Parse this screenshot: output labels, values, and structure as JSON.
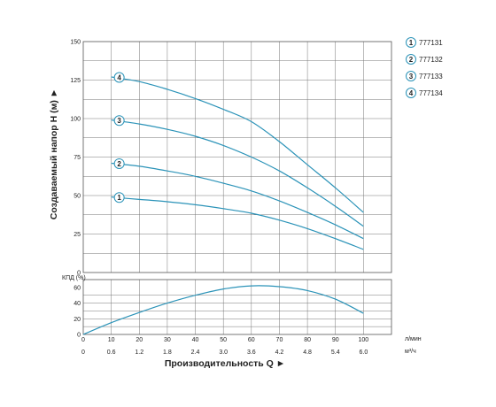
{
  "colors": {
    "curve": "#2b93b8",
    "grid": "#777777",
    "frame": "#555555"
  },
  "labels": {
    "ylabel": "Создаваемый напор Н (м) ►",
    "xlabel": "Производительность Q ►",
    "kpd_label": "КПД (%)",
    "unit_lmin": "л/мин",
    "unit_m3h": "м³/ч"
  },
  "chart_data": [
    {
      "type": "line",
      "title": "",
      "ylabel": "Создаваемый напор Н (м) ►",
      "x_ticks": [
        "0",
        "10",
        "20",
        "30",
        "40",
        "50",
        "60",
        "70",
        "80",
        "90",
        "100"
      ],
      "x_ticks_m3h": [
        "0",
        "0.6",
        "1.2",
        "1.8",
        "2.4",
        "3.0",
        "3.6",
        "4.2",
        "4.8",
        "5.4",
        "6.0"
      ],
      "y_ticks": [
        "0",
        "25",
        "50",
        "75",
        "100",
        "125",
        "150"
      ],
      "xlim": [
        0,
        110
      ],
      "ylim": [
        0,
        150
      ],
      "grid": true,
      "legend_position": "top-right",
      "series": [
        {
          "name": "777131",
          "marker": "1",
          "x": [
            10,
            20,
            30,
            40,
            50,
            60,
            70,
            80,
            90,
            100
          ],
          "y": [
            49,
            47.5,
            46,
            44,
            41.5,
            38.5,
            34,
            28.5,
            22,
            15
          ]
        },
        {
          "name": "777132",
          "marker": "2",
          "x": [
            10,
            20,
            30,
            40,
            50,
            60,
            70,
            80,
            90,
            100
          ],
          "y": [
            71,
            69,
            66,
            62.5,
            58,
            53,
            46.5,
            39,
            31,
            22
          ]
        },
        {
          "name": "777133",
          "marker": "3",
          "x": [
            10,
            20,
            30,
            40,
            50,
            60,
            70,
            80,
            90,
            100
          ],
          "y": [
            99,
            96.5,
            93,
            88.5,
            82.5,
            75,
            66,
            55,
            43,
            30
          ]
        },
        {
          "name": "777134",
          "marker": "4",
          "x": [
            10,
            20,
            30,
            40,
            50,
            60,
            70,
            80,
            90,
            100
          ],
          "y": [
            127,
            124,
            119,
            113,
            106,
            98,
            85,
            70,
            55,
            39
          ]
        }
      ]
    },
    {
      "type": "line",
      "title": "",
      "ylabel": "КПД (%)",
      "xlabel": "Производительность Q ►",
      "x_ticks": [
        "0",
        "10",
        "20",
        "30",
        "40",
        "50",
        "60",
        "70",
        "80",
        "90",
        "100"
      ],
      "y_ticks": [
        "0",
        "20",
        "40",
        "60"
      ],
      "xlim": [
        0,
        110
      ],
      "ylim": [
        0,
        70
      ],
      "grid": true,
      "series": [
        {
          "name": "",
          "x": [
            0,
            10,
            20,
            30,
            40,
            50,
            60,
            70,
            80,
            90,
            100
          ],
          "y": [
            0,
            15,
            28,
            40,
            50,
            58,
            62,
            61,
            56,
            45,
            27
          ]
        }
      ]
    }
  ]
}
